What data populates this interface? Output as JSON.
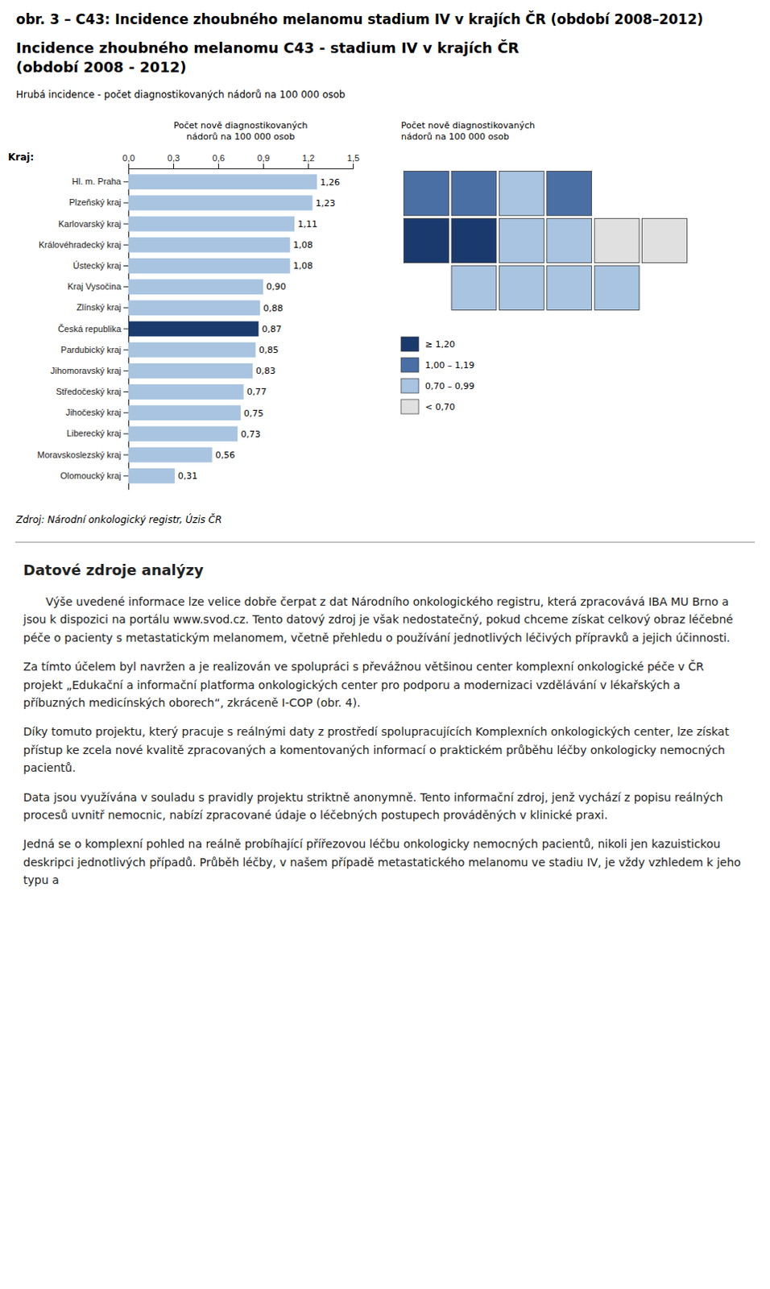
{
  "page_title": "obr. 3 – C43: Incidence zhoubného melanomu stadium IV v krajích ČR (období 2008–2012)",
  "title_lines": [
    "Incidence zhoubného melanomu C43 - stadium IV v krajích ČR",
    "(období 2008 - 2012)"
  ],
  "subtitle": "Hrubá incidence - počet diagnostikovaných nádorů na 100 000 osob",
  "source": "Zdroj: Národní onkologický registr, Úzis ČR",
  "section_title": "Datové zdroje analýzy",
  "paragraphs": [
    "Výše uvedené informace lze velice dobře čerpat z dat Národního onkologického registru, která zpracovává IBA MU Brno a jsou k dispozici na portálu www.svod.cz. Tento datový zdroj je však nedostatečný, pokud chceme získat celkový obraz léčebné péče o pacienty s metastatickým melanomem, včetně přehledu o používání jednotlivých léčivých přípravků a jejich účinnosti.",
    "Za tímto účelem byl navržen a je realizován ve spolupráci s převážnou většinou center komplexní onkologické péče v ČR projekt „Edukační a informační platforma onkologických center pro podporu a modernizaci vzdělávání v lékařských a příbuzných medicínských oborech“, zkráceně I-COP (obr. 4).",
    "Díky tomuto projektu, který pracuje s reálnými daty z prostředí spolupracujících Komplexních onkologických center, lze získat přístup ke zcela nové kvalitě zpracovaných a komentovaných informací o praktickém průběhu léčby onkologicky nemocných pacientů.",
    "Data jsou využívána v souladu s pravidly projektu striktně anonymně. Tento informační zdroj, jenž vychází z popisu reálných procesů uvnitř nemocnic, nabízí zpracované údaje o léčebných postupech prováděných v klinické praxi.",
    "Jedná se o komplexní pohled na reálně probíhající přířezovou léčbu onkologicky nemocných pacientů, nikoli jen kazuistickou deskripci jednotlivých případů. Průběh léčby, v našem případě metastatického melanomu ve stadiu IV, je vždy vzhledem k jeho typu a"
  ],
  "chart_data": [
    {
      "type": "bar",
      "orientation": "horizontal",
      "xlabel": "Počet nově diagnostikovaných\nnádorů na 100 000 osob",
      "ylabel": "Kraj:",
      "categories": [
        "Hl. m. Praha",
        "Plzeňský kraj",
        "Karlovarský kraj",
        "Královéhradecký kraj",
        "Ústecký kraj",
        "Kraj Vysočina",
        "Zlínský kraj",
        "Česká republika",
        "Pardubický kraj",
        "Jihomoravský kraj",
        "Středočeský kraj",
        "Jihočeský kraj",
        "Liberecký kraj",
        "Moravskoslezský kraj",
        "Olomoucký kraj"
      ],
      "values": [
        1.26,
        1.23,
        1.11,
        1.08,
        1.08,
        0.9,
        0.88,
        0.87,
        0.85,
        0.83,
        0.77,
        0.75,
        0.73,
        0.56,
        0.31
      ],
      "value_labels": [
        "1,26",
        "1,23",
        "1,11",
        "1,08",
        "1,08",
        "0,90",
        "0,88",
        "0,87",
        "0,85",
        "0,83",
        "0,77",
        "0,75",
        "0,73",
        "0,56",
        "0,31"
      ],
      "data_labels": true,
      "colors": [
        "#a8c4e0",
        "#a8c4e0",
        "#a8c4e0",
        "#a8c4e0",
        "#a8c4e0",
        "#a8c4e0",
        "#a8c4e0",
        "#1a3a6e",
        "#a8c4e0",
        "#a8c4e0",
        "#a8c4e0",
        "#a8c4e0",
        "#a8c4e0",
        "#a8c4e0",
        "#a8c4e0"
      ],
      "xlim": [
        0,
        1.5
      ],
      "xticks": [
        {
          "value": 0.0,
          "label": "0,0"
        },
        {
          "value": 0.3,
          "label": "0,3"
        },
        {
          "value": 0.6,
          "label": "0,6"
        },
        {
          "value": 0.9,
          "label": "0,9"
        },
        {
          "value": 1.2,
          "label": "1,2"
        },
        {
          "value": 1.5,
          "label": "1,5"
        }
      ],
      "grid": false
    },
    {
      "type": "choropleth",
      "title": "Počet nově diagnostikovaných\nnádorů na 100 000 osob",
      "values": [
        1.11,
        1.08,
        0.73,
        1.08,
        0.85,
        0.77,
        1.26,
        1.23,
        0.75,
        0.9,
        0.83,
        0.88,
        0.31,
        0.56
      ],
      "colors": [
        "#4a6fa5",
        "#4a6fa5",
        "#a8c4e0",
        "#4a6fa5",
        "#a8c4e0",
        "#a8c4e0",
        "#1a3a6e",
        "#1a3a6e",
        "#a8c4e0",
        "#a8c4e0",
        "#a8c4e0",
        "#a8c4e0",
        "#e0e0e0",
        "#e0e0e0"
      ],
      "color_classes": [
        {
          "label": "≥ 1,20",
          "color": "#1a3a6e"
        },
        {
          "label": "1,00 – 1,19",
          "color": "#4a6fa5"
        },
        {
          "label": "0,70 – 0,99",
          "color": "#a8c4e0"
        },
        {
          "label": "< 0,70",
          "color": "#e0e0e0"
        }
      ]
    }
  ]
}
